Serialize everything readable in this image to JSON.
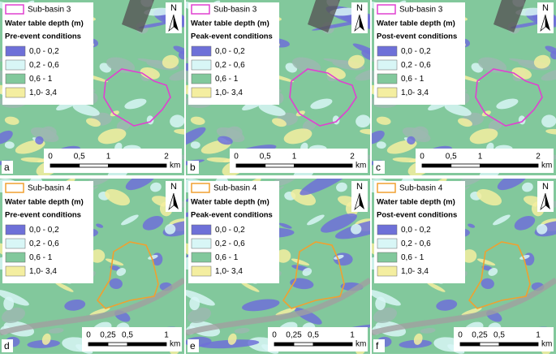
{
  "legend_classes": [
    {
      "label": "0,0 - 0,2",
      "color": "#6e70d8"
    },
    {
      "label": "0,2 - 0,6",
      "color": "#d8f6f6"
    },
    {
      "label": "0,6 - 1",
      "color": "#82c89c"
    },
    {
      "label": "1,0- 3,4",
      "color": "#f4eea0"
    }
  ],
  "rows": [
    {
      "subbasin": "Sub-basin 3",
      "outline_color": "#e040d0",
      "legend_title": "Water table depth (m)",
      "scale": {
        "ticks": [
          0,
          {
            "value": 0.5,
            "label": "0,5"
          },
          1,
          2
        ],
        "unit": "km"
      },
      "panels": [
        {
          "letter": "a",
          "condition": "Pre-event conditions"
        },
        {
          "letter": "b",
          "condition": "Peak-event conditions"
        },
        {
          "letter": "c",
          "condition": "Post-event conditions"
        }
      ]
    },
    {
      "subbasin": "Sub-basin 4",
      "outline_color": "#f0a030",
      "legend_title": "Water table depth (m)",
      "scale": {
        "ticks": [
          0,
          {
            "value": 0.25,
            "label": "0,25"
          },
          {
            "value": 0.5,
            "label": "0,5"
          },
          1
        ],
        "unit": "km"
      },
      "panels": [
        {
          "letter": "d",
          "condition": "Pre-event conditions"
        },
        {
          "letter": "e",
          "condition": "Peak-event conditions"
        },
        {
          "letter": "f",
          "condition": "Post-event conditions"
        }
      ]
    }
  ],
  "north_label": "N"
}
